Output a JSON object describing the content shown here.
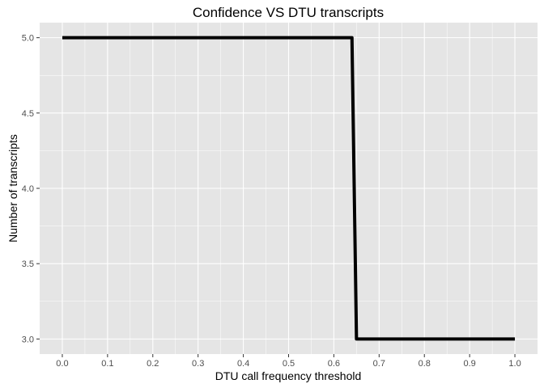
{
  "chart_data": {
    "type": "line",
    "title": "Confidence VS DTU transcripts",
    "xlabel": "DTU call frequency threshold",
    "ylabel": "Number of transcripts",
    "xlim": [
      -0.05,
      1.05
    ],
    "ylim": [
      2.9,
      5.1
    ],
    "x_ticks": [
      "0.0",
      "0.1",
      "0.2",
      "0.3",
      "0.4",
      "0.5",
      "0.6",
      "0.7",
      "0.8",
      "0.9",
      "1.0"
    ],
    "y_ticks": [
      "3.0",
      "3.5",
      "4.0",
      "4.5",
      "5.0"
    ],
    "grid": true,
    "series": [
      {
        "color": "#000000",
        "points": [
          {
            "x": 0.0,
            "y": 5
          },
          {
            "x": 0.64,
            "y": 5
          },
          {
            "x": 0.65,
            "y": 3
          },
          {
            "x": 1.0,
            "y": 3
          }
        ]
      }
    ],
    "colors": {
      "panel_background": "#e5e5e5",
      "grid_line": "#ffffff",
      "tick_mark": "#333333",
      "tick_text": "#4d4d4d"
    }
  }
}
